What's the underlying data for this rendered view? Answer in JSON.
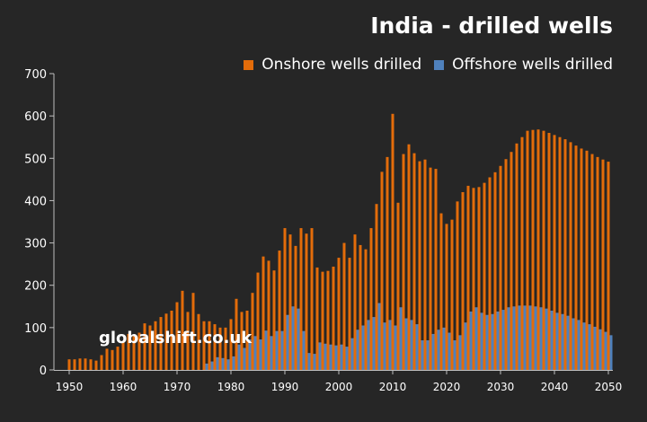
{
  "chart_data": {
    "type": "bar",
    "title": "India - drilled wells",
    "watermark": "globalshift.co.uk",
    "xlabel": "",
    "ylabel": "",
    "ylim": [
      0,
      700
    ],
    "yticks": [
      0,
      100,
      200,
      300,
      400,
      500,
      600,
      700
    ],
    "xticks": [
      1950,
      1960,
      1970,
      1980,
      1990,
      2000,
      2010,
      2020,
      2030,
      2040,
      2050
    ],
    "x_start": 1950,
    "legend_position": "top-right",
    "series": [
      {
        "name": "Onshore wells drilled",
        "color": "#e36c0a",
        "values": [
          25,
          25,
          27,
          27,
          25,
          22,
          35,
          50,
          47,
          55,
          65,
          85,
          80,
          88,
          110,
          105,
          115,
          125,
          133,
          140,
          160,
          187,
          137,
          182,
          132,
          115,
          115,
          108,
          100,
          100,
          120,
          168,
          137,
          140,
          182,
          230,
          268,
          258,
          235,
          282,
          335,
          320,
          293,
          335,
          322,
          335,
          242,
          232,
          234,
          244,
          265,
          300,
          265,
          320,
          295,
          285,
          335,
          392,
          468,
          503,
          605,
          395,
          510,
          533,
          512,
          493,
          497,
          478,
          475,
          370,
          345,
          355,
          398,
          420,
          435,
          430,
          432,
          442,
          455,
          467,
          482,
          498,
          515,
          535,
          550,
          565,
          567,
          568,
          565,
          560,
          555,
          550,
          545,
          538,
          530,
          523,
          518,
          510,
          503,
          497,
          492
        ]
      },
      {
        "name": "Offshore wells drilled",
        "color": "#4f81bd",
        "values": [
          0,
          0,
          0,
          0,
          0,
          0,
          0,
          0,
          0,
          0,
          0,
          0,
          0,
          0,
          0,
          0,
          0,
          0,
          0,
          0,
          0,
          0,
          0,
          0,
          0,
          15,
          20,
          30,
          28,
          25,
          32,
          60,
          52,
          72,
          80,
          72,
          93,
          80,
          92,
          92,
          130,
          150,
          145,
          92,
          40,
          38,
          65,
          62,
          60,
          58,
          60,
          55,
          75,
          95,
          105,
          118,
          125,
          158,
          112,
          118,
          105,
          148,
          122,
          118,
          108,
          70,
          70,
          85,
          95,
          100,
          88,
          70,
          82,
          112,
          138,
          148,
          135,
          130,
          132,
          138,
          142,
          148,
          150,
          152,
          152,
          152,
          150,
          148,
          145,
          140,
          135,
          132,
          128,
          122,
          118,
          112,
          108,
          102,
          96,
          90,
          82
        ]
      }
    ]
  }
}
